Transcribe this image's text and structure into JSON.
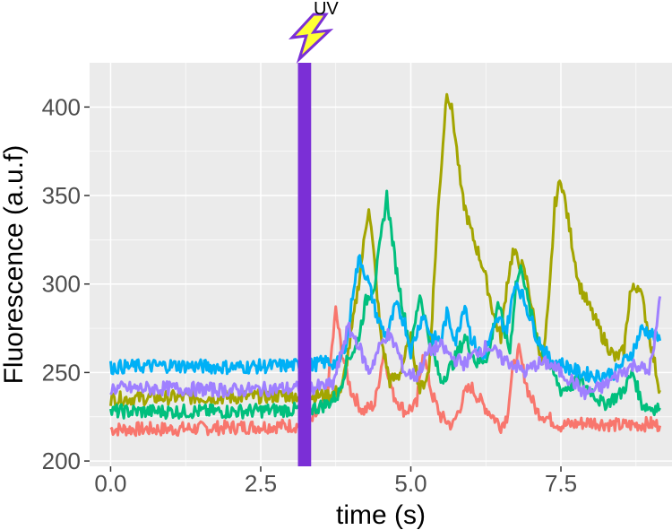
{
  "chart_data": {
    "type": "line",
    "title": "",
    "xlabel": "time (s)",
    "ylabel": "Fluorescence (a.u.f)",
    "xlim": [
      -0.35,
      9.35
    ],
    "ylim": [
      197,
      425
    ],
    "x_ticks": [
      0.0,
      2.5,
      5.0,
      7.5
    ],
    "x_tick_labels": [
      "0.0",
      "2.5",
      "5.0",
      "7.5"
    ],
    "y_ticks": [
      200,
      250,
      300,
      350,
      400
    ],
    "y_tick_labels": [
      "200",
      "250",
      "300",
      "350",
      "400"
    ],
    "grid": true,
    "legend": "none",
    "background": "#ebebeb",
    "grid_color": "#ffffff",
    "uv_event": {
      "label": "UV",
      "x_start": 3.12,
      "x_end": 3.34,
      "color": "#7b2fd6",
      "icon": "lightning-bolt-icon",
      "icon_color": "#ffff33"
    },
    "series": [
      {
        "color": "#f8766d",
        "points": [
          [
            0,
            218
          ],
          [
            1,
            218
          ],
          [
            2,
            219
          ],
          [
            3,
            220
          ],
          [
            3.3,
            220
          ],
          [
            3.6,
            235
          ],
          [
            3.75,
            285
          ],
          [
            3.85,
            262
          ],
          [
            4.0,
            240
          ],
          [
            4.2,
            228
          ],
          [
            4.4,
            232
          ],
          [
            4.55,
            262
          ],
          [
            4.7,
            238
          ],
          [
            4.9,
            228
          ],
          [
            5.1,
            232
          ],
          [
            5.2,
            262
          ],
          [
            5.35,
            238
          ],
          [
            5.5,
            225
          ],
          [
            5.7,
            220
          ],
          [
            5.9,
            238
          ],
          [
            6.0,
            242
          ],
          [
            6.2,
            232
          ],
          [
            6.5,
            220
          ],
          [
            6.6,
            225
          ],
          [
            6.7,
            252
          ],
          [
            6.8,
            262
          ],
          [
            6.95,
            240
          ],
          [
            7.1,
            228
          ],
          [
            7.5,
            220
          ],
          [
            8.0,
            222
          ],
          [
            8.5,
            220
          ],
          [
            9.0,
            221
          ],
          [
            9.15,
            220
          ]
        ]
      },
      {
        "color": "#a3a500",
        "points": [
          [
            0,
            235
          ],
          [
            1,
            236
          ],
          [
            2,
            236
          ],
          [
            3,
            237
          ],
          [
            3.3,
            237
          ],
          [
            3.6,
            237
          ],
          [
            3.85,
            240
          ],
          [
            4.0,
            270
          ],
          [
            4.15,
            305
          ],
          [
            4.3,
            345
          ],
          [
            4.4,
            310
          ],
          [
            4.5,
            270
          ],
          [
            4.65,
            245
          ],
          [
            4.8,
            248
          ],
          [
            5.0,
            270
          ],
          [
            5.15,
            240
          ],
          [
            5.3,
            250
          ],
          [
            5.45,
            340
          ],
          [
            5.6,
            410
          ],
          [
            5.7,
            395
          ],
          [
            5.85,
            350
          ],
          [
            6.0,
            330
          ],
          [
            6.2,
            310
          ],
          [
            6.4,
            280
          ],
          [
            6.5,
            270
          ],
          [
            6.6,
            300
          ],
          [
            6.7,
            318
          ],
          [
            6.85,
            310
          ],
          [
            6.95,
            300
          ],
          [
            7.1,
            270
          ],
          [
            7.2,
            255
          ],
          [
            7.3,
            290
          ],
          [
            7.4,
            345
          ],
          [
            7.5,
            360
          ],
          [
            7.6,
            340
          ],
          [
            7.8,
            300
          ],
          [
            8.0,
            285
          ],
          [
            8.2,
            270
          ],
          [
            8.4,
            258
          ],
          [
            8.55,
            262
          ],
          [
            8.65,
            295
          ],
          [
            8.8,
            300
          ],
          [
            8.95,
            275
          ],
          [
            9.1,
            248
          ],
          [
            9.15,
            240
          ]
        ]
      },
      {
        "color": "#00bf7d",
        "points": [
          [
            0,
            228
          ],
          [
            1,
            228
          ],
          [
            2,
            228
          ],
          [
            3,
            229
          ],
          [
            3.3,
            229
          ],
          [
            3.6,
            232
          ],
          [
            3.8,
            238
          ],
          [
            3.95,
            258
          ],
          [
            4.1,
            265
          ],
          [
            4.25,
            290
          ],
          [
            4.4,
            300
          ],
          [
            4.6,
            350
          ],
          [
            4.75,
            310
          ],
          [
            4.9,
            280
          ],
          [
            5.0,
            262
          ],
          [
            5.15,
            295
          ],
          [
            5.3,
            270
          ],
          [
            5.5,
            245
          ],
          [
            5.7,
            255
          ],
          [
            5.9,
            270
          ],
          [
            6.1,
            255
          ],
          [
            6.3,
            260
          ],
          [
            6.45,
            290
          ],
          [
            6.55,
            275
          ],
          [
            6.65,
            262
          ],
          [
            6.75,
            300
          ],
          [
            6.85,
            310
          ],
          [
            6.95,
            290
          ],
          [
            7.1,
            270
          ],
          [
            7.3,
            255
          ],
          [
            7.5,
            240
          ],
          [
            7.8,
            245
          ],
          [
            8.0,
            240
          ],
          [
            8.2,
            232
          ],
          [
            8.5,
            238
          ],
          [
            8.7,
            250
          ],
          [
            8.85,
            232
          ],
          [
            9.0,
            230
          ],
          [
            9.15,
            230
          ]
        ]
      },
      {
        "color": "#00b0f6",
        "points": [
          [
            0,
            253
          ],
          [
            1,
            254
          ],
          [
            2,
            253
          ],
          [
            3,
            254
          ],
          [
            3.3,
            254
          ],
          [
            3.6,
            256
          ],
          [
            3.8,
            255
          ],
          [
            3.95,
            270
          ],
          [
            4.05,
            300
          ],
          [
            4.15,
            315
          ],
          [
            4.3,
            300
          ],
          [
            4.45,
            280
          ],
          [
            4.6,
            270
          ],
          [
            4.75,
            288
          ],
          [
            4.9,
            278
          ],
          [
            5.0,
            262
          ],
          [
            5.2,
            283
          ],
          [
            5.35,
            270
          ],
          [
            5.5,
            268
          ],
          [
            5.6,
            283
          ],
          [
            5.75,
            268
          ],
          [
            5.9,
            290
          ],
          [
            6.0,
            270
          ],
          [
            6.2,
            258
          ],
          [
            6.45,
            280
          ],
          [
            6.6,
            275
          ],
          [
            6.75,
            302
          ],
          [
            6.9,
            290
          ],
          [
            7.1,
            270
          ],
          [
            7.3,
            258
          ],
          [
            7.5,
            255
          ],
          [
            7.8,
            250
          ],
          [
            8.1,
            248
          ],
          [
            8.4,
            250
          ],
          [
            8.7,
            262
          ],
          [
            8.85,
            275
          ],
          [
            9.0,
            272
          ],
          [
            9.15,
            268
          ]
        ]
      },
      {
        "color": "#9f80ff",
        "points": [
          [
            0,
            241
          ],
          [
            1,
            241
          ],
          [
            2,
            240
          ],
          [
            3,
            241
          ],
          [
            3.3,
            241
          ],
          [
            3.5,
            242
          ],
          [
            3.7,
            243
          ],
          [
            3.8,
            255
          ],
          [
            3.95,
            275
          ],
          [
            4.1,
            268
          ],
          [
            4.3,
            250
          ],
          [
            4.45,
            262
          ],
          [
            4.6,
            272
          ],
          [
            4.75,
            265
          ],
          [
            4.9,
            250
          ],
          [
            5.1,
            248
          ],
          [
            5.3,
            262
          ],
          [
            5.5,
            265
          ],
          [
            5.7,
            258
          ],
          [
            5.9,
            255
          ],
          [
            6.1,
            262
          ],
          [
            6.3,
            265
          ],
          [
            6.5,
            258
          ],
          [
            6.7,
            255
          ],
          [
            6.9,
            250
          ],
          [
            7.1,
            255
          ],
          [
            7.3,
            255
          ],
          [
            7.5,
            250
          ],
          [
            7.7,
            245
          ],
          [
            7.9,
            238
          ],
          [
            8.2,
            242
          ],
          [
            8.5,
            250
          ],
          [
            8.75,
            255
          ],
          [
            8.95,
            250
          ],
          [
            9.05,
            262
          ],
          [
            9.12,
            285
          ],
          [
            9.15,
            293
          ]
        ]
      }
    ]
  }
}
